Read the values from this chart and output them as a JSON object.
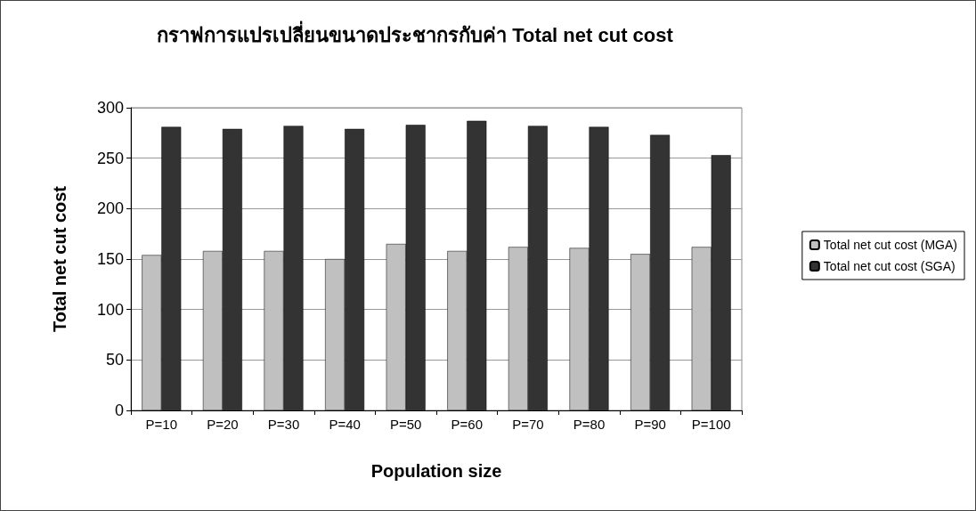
{
  "chart_data": {
    "type": "bar",
    "title": "กราฟการแปรเปลี่ยนขนาดประชากรกับค่า Total net cut cost",
    "xlabel": "Population size",
    "ylabel": "Total net cut cost",
    "categories": [
      "P=10",
      "P=20",
      "P=30",
      "P=40",
      "P=50",
      "P=60",
      "P=70",
      "P=80",
      "P=90",
      "P=100"
    ],
    "series": [
      {
        "name": "Total net cut cost (MGA)",
        "color": "#c0c0c0",
        "values": [
          154,
          158,
          158,
          150,
          165,
          158,
          162,
          161,
          155,
          162
        ]
      },
      {
        "name": "Total net cut cost (SGA)",
        "color": "#333333",
        "values": [
          281,
          279,
          282,
          279,
          283,
          287,
          282,
          281,
          273,
          253
        ]
      }
    ],
    "ylim": [
      0,
      300
    ],
    "yticks": [
      0,
      50,
      100,
      150,
      200,
      250,
      300
    ],
    "grid": "y",
    "legend": "right"
  }
}
